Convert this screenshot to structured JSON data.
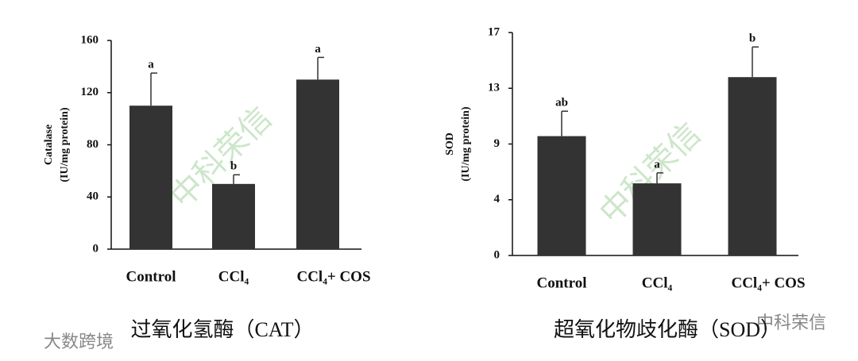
{
  "watermark": "中科荣信",
  "source_watermark": "大数跨境",
  "chart_data": [
    {
      "type": "bar",
      "caption": "过氧化氢酶（CAT）",
      "ylabel": [
        "Catalase",
        "(IU/mg protein)"
      ],
      "categories": [
        "Control",
        "CCl₄",
        "CCl₄+ COS"
      ],
      "values": [
        110,
        50,
        130
      ],
      "errors": [
        25,
        7,
        17
      ],
      "annotations": [
        "a",
        "b",
        "a"
      ],
      "color": "#333333",
      "ylim": [
        0,
        160
      ],
      "yticks": [
        0,
        40,
        80,
        120,
        160
      ]
    },
    {
      "type": "bar",
      "caption": "超氧化物歧化酶（SOD）",
      "ylabel": [
        "SOD",
        "(IU/mg protein)"
      ],
      "categories": [
        "Control",
        "CCl₄",
        "CCl₄+ COS"
      ],
      "values": [
        9.1,
        5.5,
        13.6
      ],
      "errors": [
        1.9,
        0.8,
        2.3
      ],
      "annotations": [
        "ab",
        "a",
        "b"
      ],
      "color": "#333333",
      "ylim": [
        0,
        17
      ],
      "yticks": [
        0,
        {
          "value": 4.25,
          "label": "4"
        },
        {
          "value": 8.5,
          "label": "9"
        },
        {
          "value": 12.75,
          "label": "13"
        },
        17
      ]
    }
  ]
}
